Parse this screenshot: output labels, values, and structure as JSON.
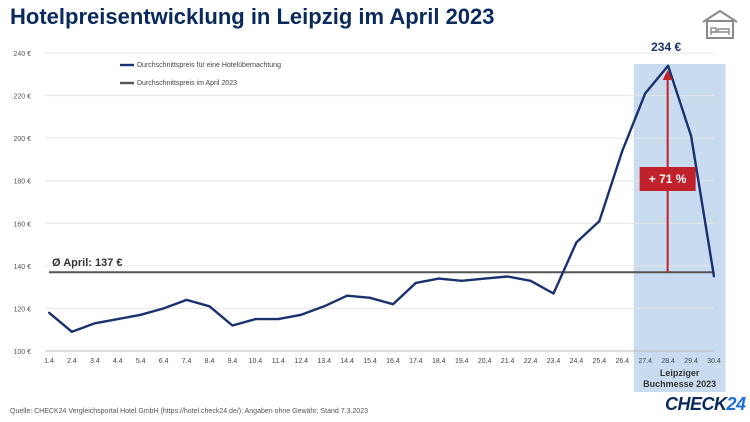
{
  "header": {
    "title": "Hotelpreisentwicklung in Leipzig im April 2023",
    "icon": "hotel-bed-icon"
  },
  "footer": {
    "source": "Quelle: CHECK24 Vergleichsportal Hotel GmbH (https://hotel.check24.de/); Angaben ohne Gewähr; Stand 7.3.2023",
    "logo": "CHECK24"
  },
  "chart_data": {
    "type": "line",
    "x": [
      "1.4",
      "2.4",
      "3.4",
      "4.4",
      "5.4",
      "6.4",
      "7.4",
      "8.4",
      "9.4",
      "10.4",
      "11.4",
      "12.4",
      "13.4",
      "14.4",
      "15.4",
      "16.4",
      "17.4",
      "18.4",
      "19.4",
      "20.4",
      "21.4",
      "22.4",
      "23.4",
      "24.4",
      "25.4",
      "26.4",
      "27.4",
      "28.4",
      "29.4",
      "30.4"
    ],
    "series": [
      {
        "name": "Durchschnittspreis für eine Hotelübernachtung",
        "color": "#1a3170",
        "values": [
          118,
          109,
          113,
          115,
          117,
          120,
          124,
          121,
          112,
          115,
          115,
          117,
          121,
          126,
          125,
          122,
          132,
          134,
          133,
          134,
          135,
          133,
          127,
          151,
          161,
          194,
          221,
          234,
          201,
          135
        ]
      },
      {
        "name": "Durchschnittspreis im April 2023",
        "color": "#555555",
        "value": 137
      }
    ],
    "ylim": [
      100,
      240
    ],
    "yticks": [
      "100 €",
      "120 €",
      "140 €",
      "160 €",
      "180 €",
      "200 €",
      "220 €",
      "240 €"
    ],
    "legend": "top-left",
    "annotations": {
      "peak_label": "234 €",
      "avg_label": "Ø April: 137 €",
      "increase_label": "+ 71 %",
      "event_label_line1": "Leipziger",
      "event_label_line2": "Buchmesse 2023",
      "event_start": "27.4",
      "event_end": "30.4",
      "arrow_color": "#c0212b",
      "highlight_color": "#c9dcef"
    }
  }
}
